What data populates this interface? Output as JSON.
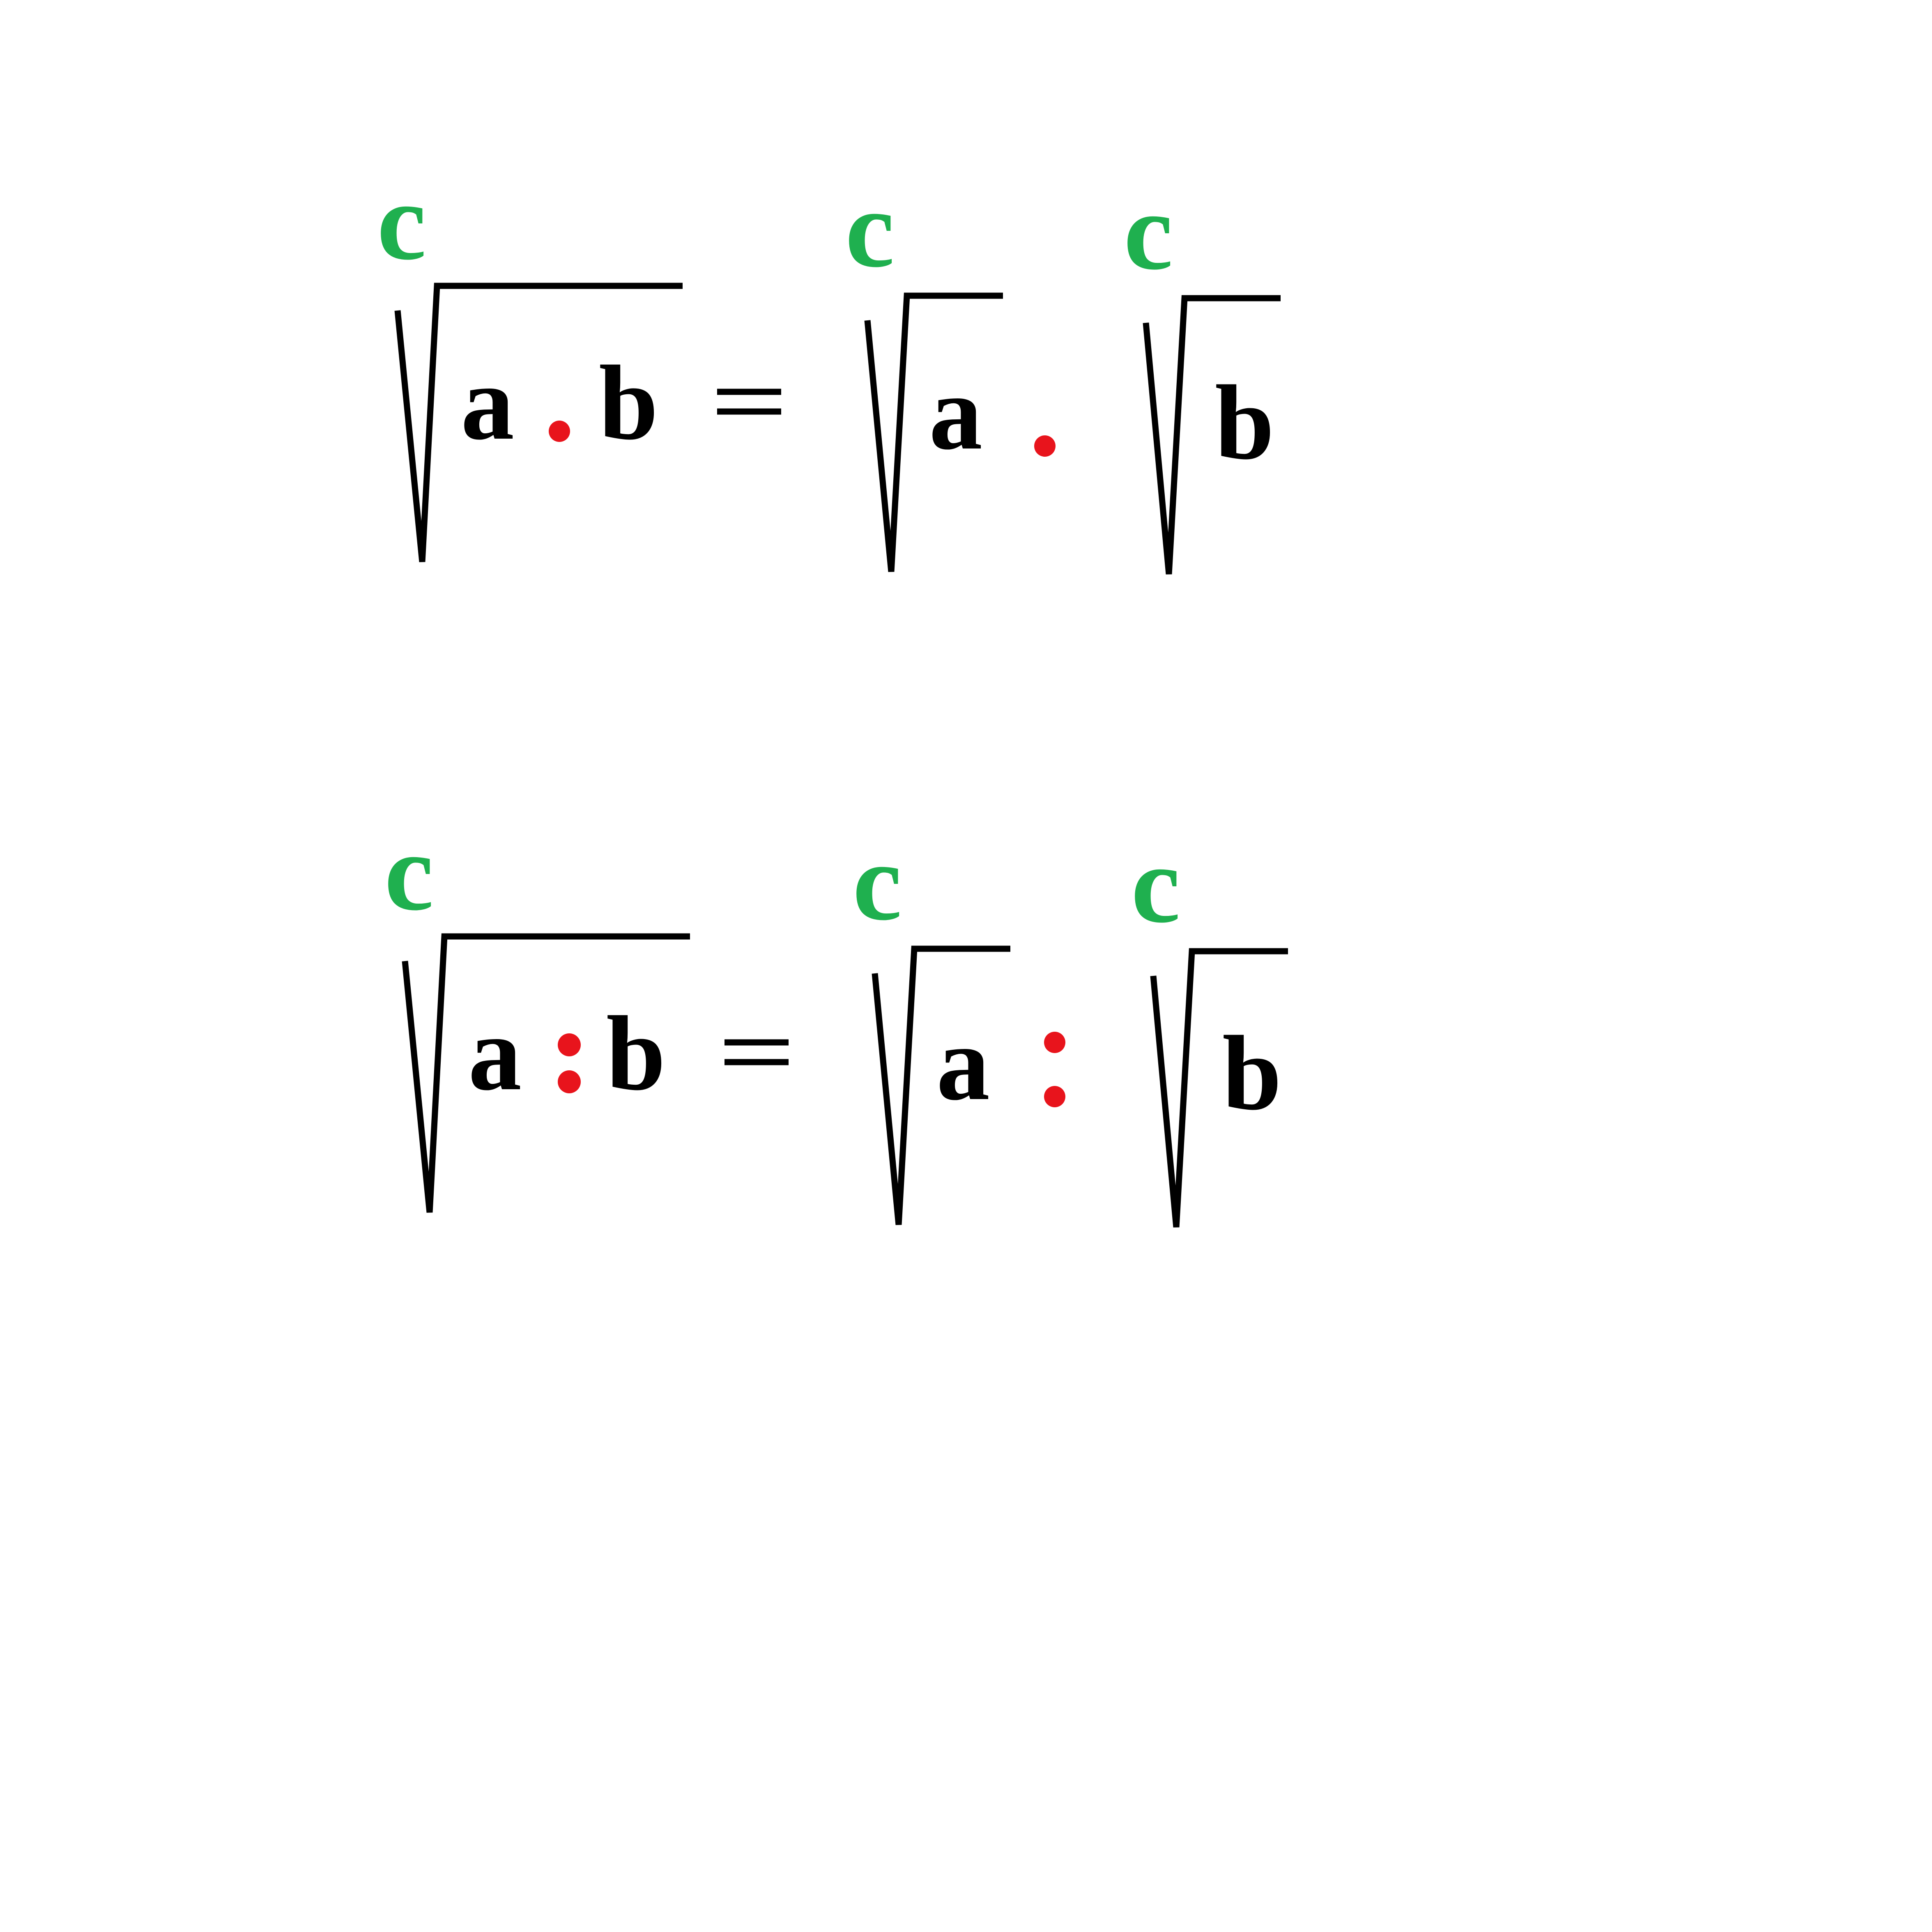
{
  "colors": {
    "background": "#ffffff",
    "ink": "#000000",
    "index": "#1fb04f",
    "operator": "#e8141c"
  },
  "equations": [
    {
      "operation": "multiplication",
      "lhs": {
        "index": "c",
        "a": "a",
        "b": "b"
      },
      "rhs": {
        "first": {
          "index": "c",
          "radicand": "a"
        },
        "second": {
          "index": "c",
          "radicand": "b"
        }
      }
    },
    {
      "operation": "division",
      "lhs": {
        "index": "c",
        "a": "a",
        "b": "b"
      },
      "rhs": {
        "first": {
          "index": "c",
          "radicand": "a"
        },
        "second": {
          "index": "c",
          "radicand": "b"
        }
      }
    }
  ]
}
